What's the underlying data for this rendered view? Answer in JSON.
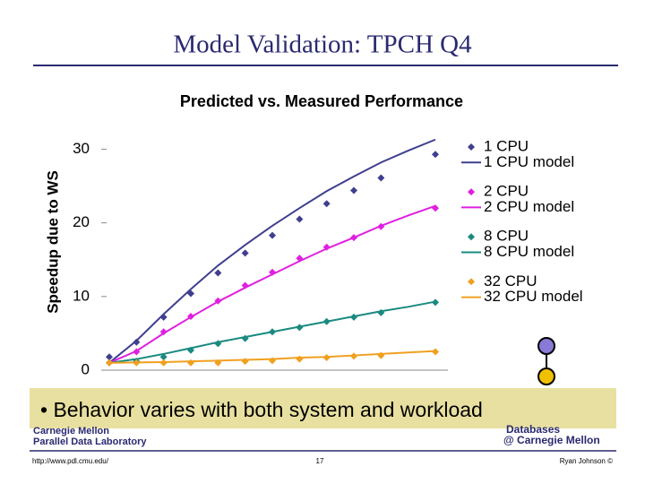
{
  "slide": {
    "title": "Model Validation: TPCH Q4",
    "banner": "• Behavior varies with both system and workload",
    "logo_left": [
      "Carnegie Mellon",
      "Parallel Data Laboratory"
    ],
    "logo_right": [
      "Databases",
      "@ Carnegie Mellon"
    ],
    "url": "http://www.pdl.cmu.edu/",
    "page": "17",
    "author": "Ryan Johnson ©"
  },
  "chart_data": {
    "type": "line",
    "title": "Predicted vs. Measured Performance",
    "y_label": "Speedup due to WS",
    "categories": [
      null,
      null,
      null,
      null,
      null,
      null,
      null,
      null,
      null,
      null,
      null,
      null,
      null
    ],
    "ylim": [
      0,
      32
    ],
    "yticks": [
      0,
      10,
      20,
      30
    ],
    "series": [
      {
        "name": "1 CPU",
        "color": "#3f3f8f",
        "style": "markers",
        "values": [
          1.8,
          3.8,
          7.2,
          10.4,
          13.2,
          15.9,
          18.3,
          20.5,
          22.6,
          24.4,
          26.1,
          null,
          29.3
        ]
      },
      {
        "name": "1 CPU model",
        "color": "#3f3f8f",
        "style": "line",
        "values": [
          1.0,
          4.0,
          7.6,
          11.0,
          14.2,
          17.0,
          19.6,
          22.0,
          24.3,
          26.3,
          28.2,
          29.8,
          31.3
        ]
      },
      {
        "name": "2 CPU",
        "color": "#e020e0",
        "style": "markers",
        "values": [
          1.0,
          2.5,
          5.2,
          7.3,
          9.4,
          11.5,
          13.3,
          15.2,
          16.7,
          18.0,
          19.5,
          null,
          22.0
        ]
      },
      {
        "name": "2 CPU model",
        "color": "#e020e0",
        "style": "line",
        "values": [
          1.0,
          2.6,
          5.0,
          7.2,
          9.3,
          11.2,
          13.0,
          14.8,
          16.5,
          18.0,
          19.6,
          21.0,
          22.3
        ]
      },
      {
        "name": "8 CPU",
        "color": "#1a8a80",
        "style": "markers",
        "values": [
          1.0,
          1.2,
          1.8,
          2.7,
          3.6,
          4.3,
          5.2,
          5.8,
          6.6,
          7.2,
          7.8,
          null,
          9.2
        ]
      },
      {
        "name": "8 CPU model",
        "color": "#1a8a80",
        "style": "line",
        "values": [
          1.0,
          1.5,
          2.2,
          3.0,
          3.8,
          4.5,
          5.2,
          5.9,
          6.6,
          7.3,
          8.0,
          8.6,
          9.3
        ]
      },
      {
        "name": "32 CPU",
        "color": "#f0a020",
        "style": "markers",
        "values": [
          1.0,
          1.0,
          1.0,
          1.0,
          1.0,
          1.2,
          1.3,
          1.5,
          1.7,
          1.9,
          2.0,
          null,
          2.5
        ]
      },
      {
        "name": "32 CPU model",
        "color": "#f0a020",
        "style": "line",
        "values": [
          1.0,
          1.05,
          1.1,
          1.2,
          1.3,
          1.4,
          1.5,
          1.7,
          1.8,
          2.0,
          2.2,
          2.4,
          2.6
        ]
      }
    ]
  }
}
